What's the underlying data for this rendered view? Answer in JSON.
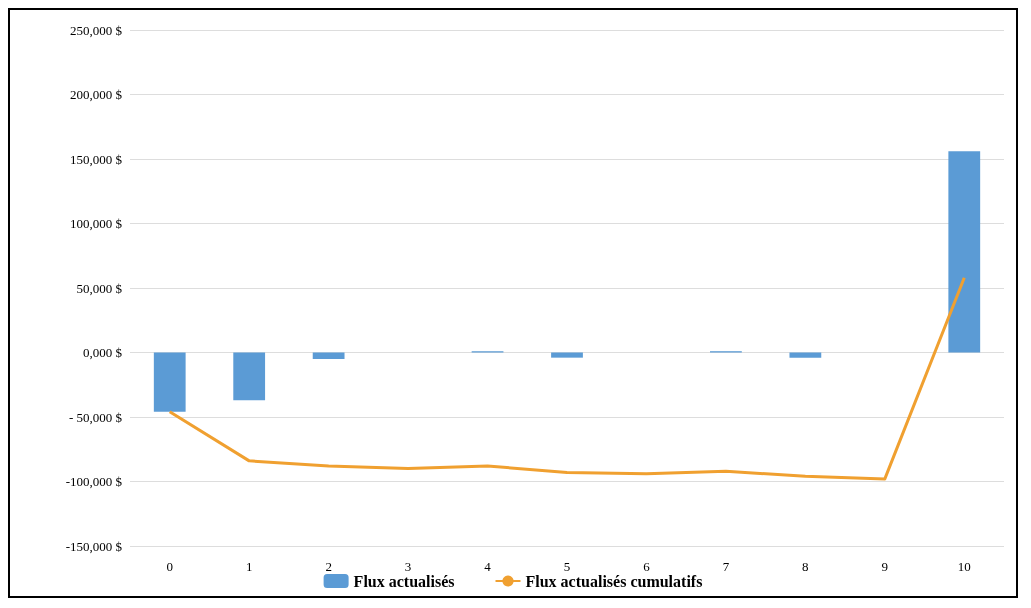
{
  "chart_data": {
    "type": "bar",
    "categories": [
      "0",
      "1",
      "2",
      "3",
      "4",
      "5",
      "6",
      "7",
      "8",
      "9",
      "10"
    ],
    "series": [
      {
        "name": "Flux actualisés",
        "color": "#5b9bd5",
        "values": [
          -46000,
          -37000,
          -5000,
          0,
          1000,
          -4000,
          0,
          1000,
          -4000,
          0,
          156000
        ]
      },
      {
        "name": "Flux actualisés cumulatifs",
        "type": "line",
        "color": "#f0a030",
        "values": [
          -46000,
          -84000,
          -88000,
          -90000,
          -88000,
          -93000,
          -94000,
          -92000,
          -96000,
          -98000,
          58000
        ]
      }
    ],
    "ylim": [
      -150000,
      250000
    ],
    "yticks": [
      {
        "value": -150000,
        "label": "-150,000 $"
      },
      {
        "value": -100000,
        "label": "-100,000 $"
      },
      {
        "value": -50000,
        "label": "- 50,000 $"
      },
      {
        "value": 0,
        "label": "0,000 $"
      },
      {
        "value": 50000,
        "label": "50,000 $"
      },
      {
        "value": 100000,
        "label": "100,000 $"
      },
      {
        "value": 150000,
        "label": "150,000 $"
      },
      {
        "value": 200000,
        "label": "200,000 $"
      },
      {
        "value": 250000,
        "label": "250,000 $"
      }
    ],
    "grid": "y",
    "legend": "bottom",
    "marker": "none",
    "line_style": "solid"
  }
}
